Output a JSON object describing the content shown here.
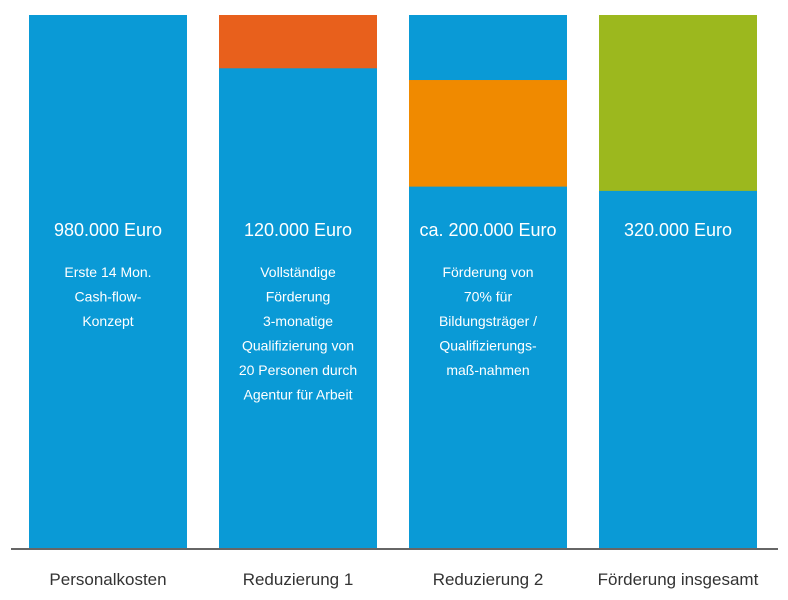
{
  "chart_data": {
    "type": "bar",
    "title": "",
    "xlabel": "",
    "ylabel": "",
    "grid": false,
    "categories": [
      "Personalkosten",
      "Reduzierung 1",
      "Reduzierung 2",
      "Förderung insgesamt"
    ],
    "values": [
      980000,
      120000,
      200000,
      320000
    ],
    "bars": [
      {
        "category": "Personalkosten",
        "amount_label": "980.000 Euro",
        "description": [
          "Erste 14 Mon.",
          "Cash-flow-",
          "Konzept"
        ],
        "highlight_fraction": 0,
        "highlight_position": "none",
        "highlight_color": ""
      },
      {
        "category": "Reduzierung 1",
        "amount_label": "120.000 Euro",
        "description": [
          "Vollständige",
          "Förderung",
          "3-monatige",
          "Qualifizierung von",
          "20 Personen durch",
          "Agentur für Arbeit"
        ],
        "highlight_fraction": 0.1,
        "highlight_position": "top",
        "highlight_color": "#e8601c"
      },
      {
        "category": "Reduzierung 2",
        "amount_label": "ca. 200.000 Euro",
        "description": [
          "Förderung  von",
          "70% für",
          "Bildungsträger /",
          "Qualifizierungs-",
          "maß-nahmen"
        ],
        "highlight_fraction": 0.2,
        "highlight_position": "upper",
        "highlight_color": "#f08a00"
      },
      {
        "category": "Förderung insgesamt",
        "amount_label": "320.000 Euro",
        "description": [],
        "highlight_fraction": 0.33,
        "highlight_position": "top",
        "highlight_color": "#9cb81e"
      }
    ],
    "colors": {
      "base": "#0a9ad6",
      "axis": "#666666",
      "label": "#333333"
    }
  }
}
